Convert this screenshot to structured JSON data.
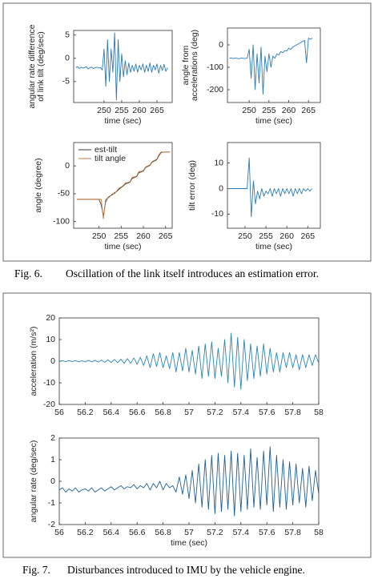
{
  "fig6_caption": {
    "label": "Fig. 6.",
    "text": "Oscillation of the link itself introduces an estimation error."
  },
  "fig7_caption": {
    "label": "Fig. 7.",
    "text": "Disturbances introduced to IMU by the vehicle engine."
  },
  "chart_data": [
    {
      "type": "line",
      "ylabel": [
        "angular rate difference",
        "of link tilt (deg/sec)"
      ],
      "xlabel": "time (sec)",
      "xlim": [
        241.4,
        269.3
      ],
      "xticks": [
        250,
        255,
        260,
        265
      ],
      "ylim": [
        -9.5,
        6
      ],
      "yticks": [
        -5,
        0,
        5
      ],
      "grid": false,
      "color": "#2a7ab8",
      "x": [
        242,
        242.5,
        243,
        243.5,
        244,
        244.5,
        245,
        245.5,
        246,
        246.5,
        247,
        247.5,
        248,
        248.5,
        249,
        249.5,
        250,
        250.5,
        251,
        251.5,
        252,
        252.5,
        253,
        253.5,
        254,
        254.5,
        255,
        255.5,
        256,
        256.5,
        257,
        257.5,
        258,
        258.5,
        259,
        259.5,
        260,
        260.5,
        261,
        261.5,
        262,
        262.5,
        263,
        263.5,
        264,
        264.5,
        265,
        265.5,
        266,
        266.5,
        267,
        267.5,
        268
      ],
      "values": [
        -2,
        -1.8,
        -2.2,
        -1.9,
        -2.1,
        -2,
        -1.8,
        -2.3,
        -2,
        -1.9,
        -2.2,
        -2,
        -1.9,
        -2.1,
        -2,
        -2.5,
        2,
        -6,
        4,
        -5,
        2,
        -3,
        5.5,
        -9,
        4,
        -5,
        1,
        -4,
        -0.5,
        -3.5,
        -1,
        -3,
        -1.5,
        -2.8,
        -1.2,
        -3,
        -1.5,
        -2.5,
        -1.2,
        -3,
        -1.5,
        -2.8,
        -1,
        -3,
        -1.5,
        -2.5,
        -1.2,
        -3.2,
        -1.5,
        -2.6,
        -1.3,
        -2.8,
        -2
      ]
    },
    {
      "type": "line",
      "ylabel": [
        "angle from",
        "accelerations (deg)"
      ],
      "xlabel": "time (sec)",
      "xlim": [
        244.5,
        268
      ],
      "xticks": [
        250,
        255,
        260,
        265
      ],
      "ylim": [
        -257,
        75
      ],
      "yticks": [
        -200,
        -100,
        0
      ],
      "grid": false,
      "color": "#2a7ab8",
      "x": [
        245,
        245.5,
        246,
        246.5,
        247,
        247.5,
        248,
        248.5,
        249,
        249.5,
        250,
        250.5,
        251,
        251.5,
        252,
        252.5,
        253,
        253.5,
        254,
        254.5,
        255,
        255.5,
        256,
        256.5,
        257,
        257.5,
        258,
        258.5,
        259,
        259.5,
        260,
        260.5,
        261,
        261.5,
        262,
        262.5,
        263,
        263.5,
        264,
        264.5,
        265,
        265.5,
        266
      ],
      "values": [
        -60,
        -58,
        -61,
        -59,
        -60,
        -62,
        -58,
        -60,
        -61,
        -59,
        -20,
        -150,
        0,
        -200,
        -40,
        -170,
        -10,
        -220,
        -50,
        -120,
        -40,
        -100,
        -50,
        -60,
        -40,
        -45,
        -30,
        -35,
        -25,
        -28,
        -15,
        -20,
        -10,
        -5,
        0,
        5,
        10,
        15,
        20,
        -80,
        30,
        25,
        30
      ]
    },
    {
      "type": "line",
      "ylabel": [
        "angle (degree)"
      ],
      "xlabel": "time (sec)",
      "xlim": [
        244.3,
        266.5
      ],
      "xticks": [
        250,
        255,
        260,
        265
      ],
      "ylim": [
        -112,
        42
      ],
      "yticks": [
        -100,
        -50,
        0
      ],
      "grid": false,
      "legend": "upper left",
      "x": [
        245,
        245.5,
        246,
        246.5,
        247,
        247.5,
        248,
        248.5,
        249,
        249.5,
        250,
        250.5,
        251,
        251.5,
        252,
        252.5,
        253,
        253.5,
        254,
        254.5,
        255,
        255.5,
        256,
        256.5,
        257,
        257.5,
        258,
        258.5,
        259,
        259.5,
        260,
        260.5,
        261,
        261.5,
        262,
        262.5,
        263,
        263.5,
        264,
        264.5,
        265,
        265.5,
        266
      ],
      "series": [
        {
          "name": "est-tilt",
          "color": "#3a3a3a",
          "values": [
            -60,
            -60,
            -60,
            -60,
            -60,
            -60,
            -60,
            -60,
            -60,
            -60,
            -60,
            -70,
            -90,
            -65,
            -57,
            -54,
            -52,
            -48,
            -46,
            -42,
            -39,
            -36,
            -32,
            -31,
            -29,
            -22,
            -21,
            -19,
            -12,
            -11,
            -9,
            -3,
            -1,
            1,
            7,
            9,
            11,
            18,
            24,
            25,
            25,
            25,
            25
          ]
        },
        {
          "name": "tilt angle",
          "color": "#c27a3e",
          "values": [
            -60,
            -60,
            -60,
            -60,
            -60,
            -60,
            -60,
            -60,
            -60,
            -60,
            -60,
            -60,
            -95,
            -60,
            -58,
            -55,
            -50,
            -50,
            -45,
            -40,
            -38,
            -35,
            -30,
            -30,
            -28,
            -20,
            -20,
            -18,
            -10,
            -10,
            -8,
            -2,
            0,
            2,
            8,
            10,
            12,
            20,
            25,
            25,
            25,
            25,
            25
          ]
        }
      ]
    },
    {
      "type": "line",
      "ylabel": [
        "tilt error (deg)"
      ],
      "xlabel": "time (sec)",
      "xlim": [
        245.8,
        268
      ],
      "xticks": [
        250,
        255,
        260,
        265
      ],
      "ylim": [
        -15.5,
        18
      ],
      "yticks": [
        -10,
        0,
        10
      ],
      "grid": false,
      "color": "#2a7ab8",
      "x": [
        246,
        246.5,
        247,
        247.5,
        248,
        248.5,
        249,
        249.5,
        250,
        250.5,
        251,
        251.5,
        252,
        252.5,
        253,
        253.5,
        254,
        254.5,
        255,
        255.5,
        256,
        256.5,
        257,
        257.5,
        258,
        258.5,
        259,
        259.5,
        260,
        260.5,
        261,
        261.5,
        262,
        262.5,
        263,
        263.5,
        264,
        264.5,
        265,
        265.5,
        266
      ],
      "values": [
        0,
        0,
        0,
        0,
        0,
        0,
        0,
        0,
        0,
        0,
        12,
        -11,
        3,
        -6,
        -1,
        -4,
        0,
        -3,
        -1,
        -2,
        0,
        -3,
        0,
        -2,
        0,
        -3,
        0,
        -2,
        0,
        -2,
        0,
        -3,
        0,
        -2,
        0,
        -2,
        0,
        -1,
        0,
        -1,
        0
      ]
    },
    {
      "type": "line",
      "ylabel": [
        "acceleration (m/s²)"
      ],
      "xlim": [
        56,
        58
      ],
      "xticks": [
        56,
        56.2,
        56.4,
        56.6,
        56.8,
        57,
        57.2,
        57.4,
        57.6,
        57.8,
        58
      ],
      "ylim": [
        -20,
        20
      ],
      "yticks": [
        -20,
        -10,
        0,
        10,
        20
      ],
      "grid": false,
      "color": "#2a86b5",
      "x": [
        56,
        56.025,
        56.05,
        56.075,
        56.1,
        56.125,
        56.15,
        56.175,
        56.2,
        56.225,
        56.25,
        56.275,
        56.3,
        56.325,
        56.35,
        56.375,
        56.4,
        56.425,
        56.45,
        56.475,
        56.5,
        56.525,
        56.55,
        56.575,
        56.6,
        56.625,
        56.65,
        56.675,
        56.7,
        56.725,
        56.75,
        56.775,
        56.8,
        56.825,
        56.85,
        56.875,
        56.9,
        56.925,
        56.95,
        56.975,
        57,
        57.025,
        57.05,
        57.075,
        57.1,
        57.125,
        57.15,
        57.175,
        57.2,
        57.225,
        57.25,
        57.275,
        57.3,
        57.325,
        57.35,
        57.375,
        57.4,
        57.425,
        57.45,
        57.475,
        57.5,
        57.525,
        57.55,
        57.575,
        57.6,
        57.625,
        57.65,
        57.675,
        57.7,
        57.725,
        57.75,
        57.775,
        57.8,
        57.825,
        57.85,
        57.875,
        57.9,
        57.925,
        57.95,
        57.975,
        58
      ],
      "values": [
        0,
        0.2,
        -0.2,
        0.3,
        -0.2,
        0.3,
        -0.3,
        0.2,
        -0.3,
        0.4,
        -0.3,
        0.4,
        -0.4,
        0.5,
        -0.5,
        0.6,
        -0.6,
        0.8,
        -0.7,
        0.9,
        -1,
        1.2,
        -1,
        1.5,
        -1.5,
        1.8,
        -2,
        2.5,
        -3,
        3.5,
        -2.5,
        4,
        -3,
        2.5,
        -3.5,
        4,
        -5,
        4,
        -4.5,
        6,
        -5,
        5,
        -6,
        7,
        -8,
        8,
        -7,
        9,
        -8,
        6,
        -7,
        10,
        -10,
        13,
        -12,
        11,
        -13,
        10,
        -9,
        8,
        -8,
        7,
        -7,
        8,
        -6,
        6,
        -5,
        4,
        -5,
        4,
        -3,
        4,
        -3,
        3,
        -4,
        3,
        -3,
        3,
        -2,
        3,
        -1
      ]
    },
    {
      "type": "line",
      "ylabel": [
        "angular rate (deg/sec)"
      ],
      "xlabel": "time (sec)",
      "xlim": [
        56,
        58
      ],
      "xticks": [
        56,
        56.2,
        56.4,
        56.6,
        56.8,
        57,
        57.2,
        57.4,
        57.6,
        57.8,
        58
      ],
      "ylim": [
        -2,
        2
      ],
      "yticks": [
        -2,
        -1,
        0,
        1,
        2
      ],
      "grid": false,
      "color": "#1f5f94",
      "x": [
        56,
        56.025,
        56.05,
        56.075,
        56.1,
        56.125,
        56.15,
        56.175,
        56.2,
        56.225,
        56.25,
        56.275,
        56.3,
        56.325,
        56.35,
        56.375,
        56.4,
        56.425,
        56.45,
        56.475,
        56.5,
        56.525,
        56.55,
        56.575,
        56.6,
        56.625,
        56.65,
        56.675,
        56.7,
        56.725,
        56.75,
        56.775,
        56.8,
        56.825,
        56.85,
        56.875,
        56.9,
        56.925,
        56.95,
        56.975,
        57,
        57.025,
        57.05,
        57.075,
        57.1,
        57.125,
        57.15,
        57.175,
        57.2,
        57.225,
        57.25,
        57.275,
        57.3,
        57.325,
        57.35,
        57.375,
        57.4,
        57.425,
        57.45,
        57.475,
        57.5,
        57.525,
        57.55,
        57.575,
        57.6,
        57.625,
        57.65,
        57.675,
        57.7,
        57.725,
        57.75,
        57.775,
        57.8,
        57.825,
        57.85,
        57.875,
        57.9,
        57.925,
        57.95,
        57.975,
        58
      ],
      "values": [
        -0.4,
        -0.3,
        -0.5,
        -0.35,
        -0.45,
        -0.3,
        -0.5,
        -0.4,
        -0.35,
        -0.45,
        -0.3,
        -0.5,
        -0.4,
        -0.3,
        -0.45,
        -0.35,
        -0.25,
        -0.4,
        -0.3,
        -0.2,
        -0.35,
        -0.25,
        -0.3,
        -0.15,
        -0.35,
        -0.2,
        -0.3,
        -0.1,
        -0.4,
        -0.1,
        -0.3,
        0,
        -0.4,
        -0.1,
        -0.3,
        -0.2,
        -0.5,
        0.2,
        -0.6,
        0.3,
        -0.8,
        0.5,
        -1,
        0.8,
        -1.2,
        1,
        -1.3,
        1.2,
        -1.5,
        1.3,
        -1.4,
        1.2,
        -1.3,
        1.4,
        -1.6,
        1.3,
        -1.4,
        1.2,
        -1.3,
        1.5,
        -1.2,
        1.1,
        -1.3,
        1.4,
        -1.1,
        1.6,
        -1.4,
        1.2,
        -1.2,
        1,
        -1.3,
        0.9,
        -1.1,
        0.8,
        -1,
        0.6,
        -1.2,
        0.7,
        -0.9,
        0.5,
        -0.6
      ]
    }
  ]
}
